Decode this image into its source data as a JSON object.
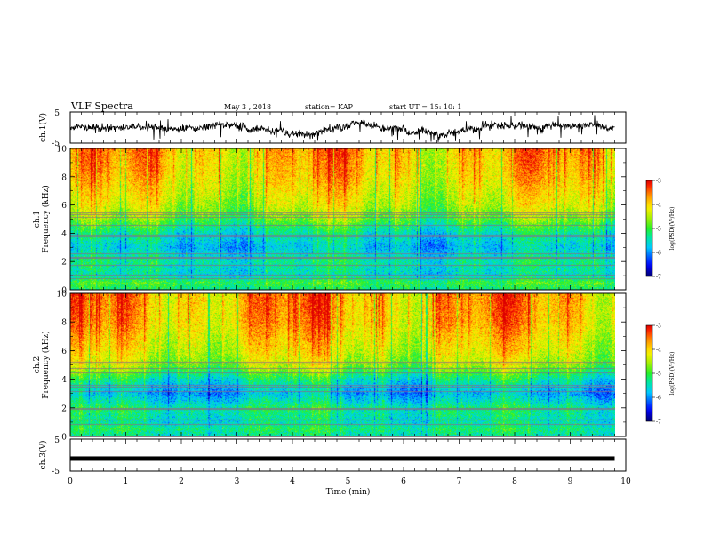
{
  "header": {
    "title": "VLF Spectra",
    "date": "May 3   , 2018",
    "station": "station= KAP",
    "start": "start  UT  =   15: 10: 1"
  },
  "chart_data": [
    {
      "type": "line",
      "id": "ch1-voltage",
      "ylabel": "ch.1(V)",
      "ylim": [
        -5,
        5
      ],
      "yticks": [
        "5",
        "-5"
      ],
      "xlim": [
        0,
        10
      ],
      "data_end_min": 9.8,
      "style": "noisy-waveform",
      "center": 0.2,
      "amplitude": 2.5
    },
    {
      "type": "heatmap",
      "id": "ch1-spectrogram",
      "ylabel": "ch.1\nFrequency  (kHz)",
      "ylabel_lines": [
        "ch.1",
        "Frequency  (kHz)"
      ],
      "ylim": [
        0,
        10
      ],
      "yticks": [
        "0",
        "2",
        "4",
        "6",
        "8",
        "10"
      ],
      "xlim": [
        0,
        10
      ],
      "data_end_min": 9.8,
      "colorbar": {
        "label": "log(PSD)(V²/Hz)",
        "range": [
          -7,
          -3
        ],
        "ticks": [
          "-3",
          "-4",
          "-5",
          "-6",
          "-7"
        ]
      },
      "band_profile_khz": [
        {
          "f": 0.0,
          "level": -5.3
        },
        {
          "f": 0.5,
          "level": -5.0
        },
        {
          "f": 1.0,
          "level": -5.6
        },
        {
          "f": 2.0,
          "level": -5.4
        },
        {
          "f": 3.0,
          "level": -5.8
        },
        {
          "f": 4.0,
          "level": -5.5
        },
        {
          "f": 5.0,
          "level": -4.9
        },
        {
          "f": 6.0,
          "level": -4.5
        },
        {
          "f": 7.0,
          "level": -4.3
        },
        {
          "f": 8.0,
          "level": -4.1
        },
        {
          "f": 10.0,
          "level": -3.9
        }
      ],
      "lines_khz": [
        0.8,
        1.05,
        1.75,
        2.25,
        2.35,
        2.55,
        3.75,
        3.9,
        4.6,
        5.15,
        5.35,
        5.5
      ]
    },
    {
      "type": "heatmap",
      "id": "ch2-spectrogram",
      "ylabel": "ch.2\nFrequency  (kHz)",
      "ylabel_lines": [
        "ch.2",
        "Frequency  (kHz)"
      ],
      "ylim": [
        0,
        10
      ],
      "yticks": [
        "0",
        "2",
        "4",
        "6",
        "8",
        "10"
      ],
      "xlim": [
        0,
        10
      ],
      "data_end_min": 9.8,
      "colorbar": {
        "label": "log(PSD)(V²/Hz)",
        "range": [
          -7,
          -3
        ],
        "ticks": [
          "-3",
          "-4",
          "-5",
          "-6",
          "-7"
        ]
      },
      "band_profile_khz": [
        {
          "f": 0.0,
          "level": -5.5
        },
        {
          "f": 0.5,
          "level": -5.2
        },
        {
          "f": 1.0,
          "level": -5.5
        },
        {
          "f": 2.0,
          "level": -5.3
        },
        {
          "f": 3.0,
          "level": -5.9
        },
        {
          "f": 4.0,
          "level": -5.4
        },
        {
          "f": 5.0,
          "level": -4.6
        },
        {
          "f": 6.0,
          "level": -4.3
        },
        {
          "f": 7.0,
          "level": -4.1
        },
        {
          "f": 8.0,
          "level": -3.9
        },
        {
          "f": 10.0,
          "level": -3.8
        }
      ],
      "lines_khz": [
        0.85,
        1.2,
        1.9,
        2.0,
        3.15,
        3.5,
        3.6,
        4.5,
        4.8,
        5.1,
        5.2
      ]
    },
    {
      "type": "line",
      "id": "ch3-voltage",
      "ylabel": "ch.3(V)",
      "ylim": [
        -5,
        5
      ],
      "yticks": [
        "5",
        "-5"
      ],
      "xlim": [
        0,
        10
      ],
      "data_end_min": 9.8,
      "style": "flat",
      "center": -1.1,
      "amplitude": 0.2
    }
  ],
  "x_axis": {
    "label": "Time  (min)",
    "ticks": [
      "0",
      "1",
      "2",
      "3",
      "4",
      "5",
      "6",
      "7",
      "8",
      "9",
      "10"
    ]
  },
  "colors": {
    "waveform": "#000000",
    "frame": "#000000",
    "spectral_lines": "#8a6a8a"
  }
}
